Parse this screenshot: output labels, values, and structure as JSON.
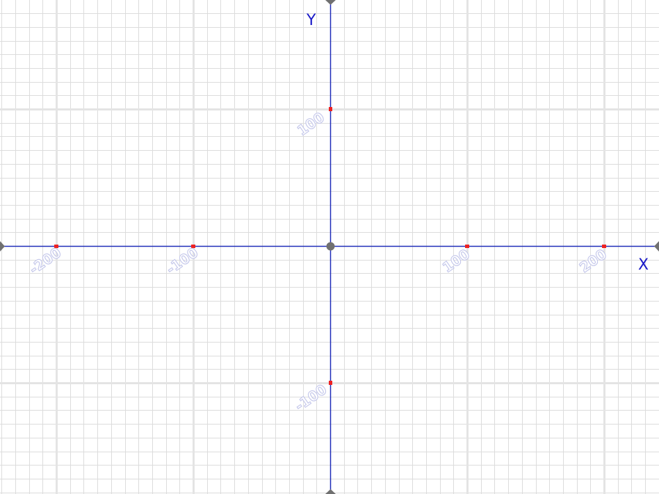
{
  "plane": {
    "axes": {
      "x_label": "X",
      "y_label": "Y"
    },
    "x_range": [
      -240,
      240
    ],
    "y_range": [
      -180,
      180
    ],
    "minor_grid_step": 10,
    "major_grid_step": 100,
    "x_ticks": [
      {
        "value": -200,
        "label": "-200"
      },
      {
        "value": -100,
        "label": "-100"
      },
      {
        "value": 100,
        "label": "100"
      },
      {
        "value": 200,
        "label": "200"
      }
    ],
    "y_ticks": [
      {
        "value": 100,
        "label": "100"
      },
      {
        "value": -100,
        "label": "-100"
      }
    ],
    "colors": {
      "background": "#ffffff",
      "minor_grid": "#dcdcdc",
      "major_grid": "#e4e4e4",
      "axis": "#1d2bb8",
      "axis_label": "#1a1ac8",
      "tick_marker": "#ee2222",
      "arrow": "#707070",
      "origin": "#707070",
      "tick_label": "#c3c6ea"
    }
  }
}
